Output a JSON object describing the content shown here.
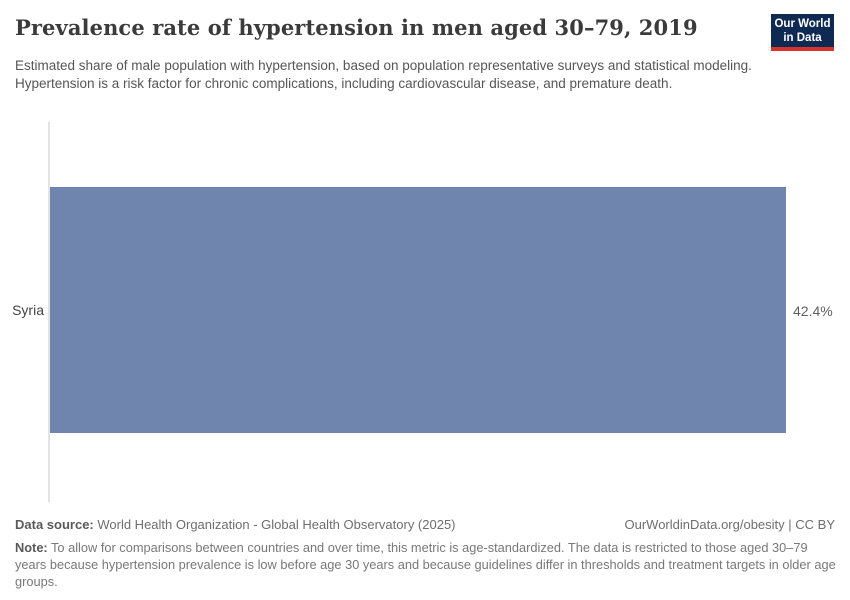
{
  "header": {
    "title": "Prevalence rate of hypertension in men aged 30–79, 2019",
    "subtitle": "Estimated share of male population with hypertension, based on population representative surveys and statistical modeling. Hypertension is a risk factor for chronic complications, including cardiovascular disease, and premature death.",
    "logo": {
      "line1": "Our World",
      "line2": "in Data",
      "bg_color": "#0f2a52",
      "stripe_color": "#d7332f"
    }
  },
  "chart_data": {
    "type": "bar",
    "orientation": "horizontal",
    "categories": [
      "Syria"
    ],
    "values": [
      42.4
    ],
    "value_labels": [
      "42.4%"
    ],
    "title": "Prevalence rate of hypertension in men aged 30–79, 2019",
    "xlabel": "",
    "ylabel": "",
    "xlim": [
      0,
      42.4
    ],
    "grid": false,
    "legend": "none",
    "bar_color": "#6f85ad",
    "axis_line_color": "#e3e3e3"
  },
  "footer": {
    "datasource_label": "Data source:",
    "datasource_text": " World Health Organization - Global Health Observatory (2025)",
    "rights_text": "OurWorldinData.org/obesity | CC BY",
    "note_label": "Note:",
    "note_text": " To allow for comparisons between countries and over time, this metric is age-standardized. The data is restricted to those aged 30–79 years because hypertension prevalence is low before age 30 years and because guidelines differ in thresholds and treatment targets in older age groups."
  }
}
